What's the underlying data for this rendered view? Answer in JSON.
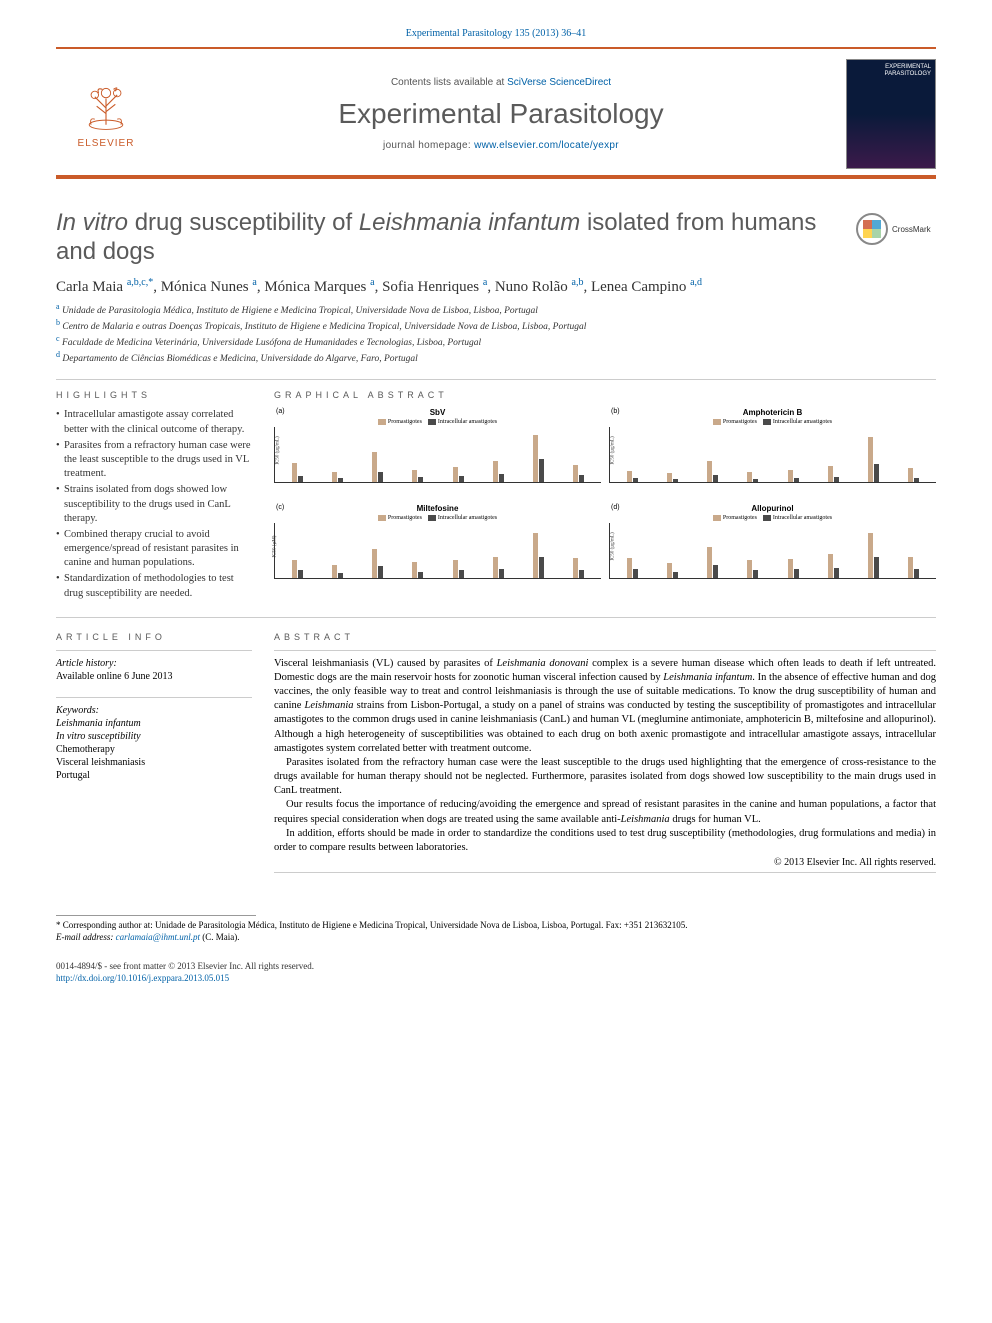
{
  "citation": "Experimental Parasitology 135 (2013) 36–41",
  "header": {
    "publisher": "ELSEVIER",
    "contents_prefix": "Contents lists available at ",
    "contents_link": "SciVerse ScienceDirect",
    "journal": "Experimental Parasitology",
    "homepage_prefix": "journal homepage: ",
    "homepage_link": "www.elsevier.com/locate/yexpr",
    "cover_text": "EXPERIMENTAL\nPARASITOLOGY"
  },
  "title_html": "<i>In vitro</i> drug susceptibility of <i>Leishmania infantum</i> isolated from humans and dogs",
  "crossmark": "CrossMark",
  "authors_html": "Carla Maia <sup>a,b,c,*</sup>, Mónica Nunes <sup>a</sup>, Mónica Marques <sup>a</sup>, Sofia Henriques <sup>a</sup>, Nuno Rolão <sup>a,b</sup>, Lenea Campino <sup>a,d</sup>",
  "affiliations": [
    {
      "sup": "a",
      "text": "Unidade de Parasitologia Médica, Instituto de Higiene e Medicina Tropical, Universidade Nova de Lisboa, Lisboa, Portugal"
    },
    {
      "sup": "b",
      "text": "Centro de Malaria e outras Doenças Tropicais, Instituto de Higiene e Medicina Tropical, Universidade Nova de Lisboa, Lisboa, Portugal"
    },
    {
      "sup": "c",
      "text": "Faculdade de Medicina Veterinária, Universidade Lusófona de Humanidades e Tecnologias, Lisboa, Portugal"
    },
    {
      "sup": "d",
      "text": "Departamento de Ciências Biomédicas e Medicina, Universidade do Algarve, Faro, Portugal"
    }
  ],
  "headings": {
    "highlights": "HIGHLIGHTS",
    "graphical": "GRAPHICAL ABSTRACT",
    "article_info": "ARTICLE INFO",
    "abstract": "ABSTRACT"
  },
  "highlights": [
    "Intracellular amastigote assay correlated better with the clinical outcome of therapy.",
    "Parasites from a refractory human case were the least susceptible to the drugs used in VL treatment.",
    "Strains isolated from dogs showed low susceptibility to the drugs used in CanL therapy.",
    "Combined therapy crucial to avoid emergence/spread of resistant parasites in canine and human populations.",
    "Standardization of methodologies to test drug susceptibility are needed."
  ],
  "graphical_charts": {
    "series_legend": [
      "Promastigotes",
      "Intracellular amastigotes"
    ],
    "series_colors": [
      "#c9a98a",
      "#4a4a4a"
    ],
    "xcats": [
      "L1",
      "L2",
      "L3",
      "L4",
      "L5",
      "L6",
      "L7",
      "L8"
    ],
    "charts": [
      {
        "label": "(a)",
        "title": "SbV",
        "ylab": "IC50 (µg/mL)",
        "ymax": 50,
        "promastigotes": [
          18,
          10,
          28,
          12,
          14,
          20,
          44,
          16
        ],
        "amastigotes": [
          6,
          4,
          10,
          5,
          6,
          8,
          22,
          7
        ]
      },
      {
        "label": "(b)",
        "title": "Amphotericin B",
        "ylab": "IC50 (µg/mL)",
        "ymax": 1.0,
        "promastigotes": [
          0.22,
          0.18,
          0.4,
          0.2,
          0.24,
          0.3,
          0.85,
          0.26
        ],
        "amastigotes": [
          0.08,
          0.06,
          0.14,
          0.07,
          0.08,
          0.1,
          0.35,
          0.09
        ]
      },
      {
        "label": "(c)",
        "title": "Miltefosine",
        "ylab": "IC50 (µM)",
        "ymax": 40,
        "promastigotes": [
          14,
          10,
          22,
          12,
          14,
          16,
          34,
          15
        ],
        "amastigotes": [
          6,
          4,
          9,
          5,
          6,
          7,
          16,
          6
        ]
      },
      {
        "label": "(d)",
        "title": "Allopurinol",
        "ylab": "IC50 (µg/mL)",
        "ymax": 120,
        "promastigotes": [
          45,
          35,
          70,
          40,
          44,
          55,
          100,
          48
        ],
        "amastigotes": [
          20,
          15,
          30,
          18,
          20,
          24,
          48,
          21
        ]
      }
    ]
  },
  "article_info": {
    "history_label": "Article history:",
    "history_value": "Available online 6 June 2013",
    "keywords_label": "Keywords:",
    "keywords": [
      "Leishmania infantum",
      "In vitro susceptibility",
      "Chemotherapy",
      "Visceral leishmaniasis",
      "Portugal"
    ]
  },
  "abstract_paragraphs": [
    "Visceral leishmaniasis (VL) caused by parasites of <i>Leishmania donovani</i> complex is a severe human disease which often leads to death if left untreated. Domestic dogs are the main reservoir hosts for zoonotic human visceral infection caused by <i>Leishmania infantum</i>. In the absence of effective human and dog vaccines, the only feasible way to treat and control leishmaniasis is through the use of suitable medications. To know the drug susceptibility of human and canine <i>Leishmania</i> strains from Lisbon-Portugal, a study on a panel of strains was conducted by testing the susceptibility of promastigotes and intracellular amastigotes to the common drugs used in canine leishmaniasis (CanL) and human VL (meglumine antimoniate, amphotericin B, miltefosine and allopurinol). Although a high heterogeneity of susceptibilities was obtained to each drug on both axenic promastigote and intracellular amastigote assays, intracellular amastigotes system correlated better with treatment outcome.",
    "Parasites isolated from the refractory human case were the least susceptible to the drugs used highlighting that the emergence of cross-resistance to the drugs available for human therapy should not be neglected. Furthermore, parasites isolated from dogs showed low susceptibility to the main drugs used in CanL treatment.",
    "Our results focus the importance of reducing/avoiding the emergence and spread of resistant parasites in the canine and human populations, a factor that requires special consideration when dogs are treated using the same available anti-<i>Leishmania</i> drugs for human VL.",
    "In addition, efforts should be made in order to standardize the conditions used to test drug susceptibility (methodologies, drug formulations and media) in order to compare results between laboratories."
  ],
  "copyright": "© 2013 Elsevier Inc. All rights reserved.",
  "footnote": {
    "corr_label": "* Corresponding author at: Unidade de Parasitologia Médica, Instituto de Higiene e Medicina Tropical, Universidade Nova de Lisboa, Lisboa, Portugal. Fax: +351 213632105.",
    "email_label": "E-mail address:",
    "email": "carlamaia@ihmt.unl.pt",
    "email_name": "(C. Maia)."
  },
  "bottom": {
    "line1": "0014-4894/$ - see front matter © 2013 Elsevier Inc. All rights reserved.",
    "doi": "http://dx.doi.org/10.1016/j.exppara.2013.05.015"
  },
  "colors": {
    "accent": "#ca5b29",
    "link": "#0061a7",
    "grey": "#5a5a5a"
  }
}
